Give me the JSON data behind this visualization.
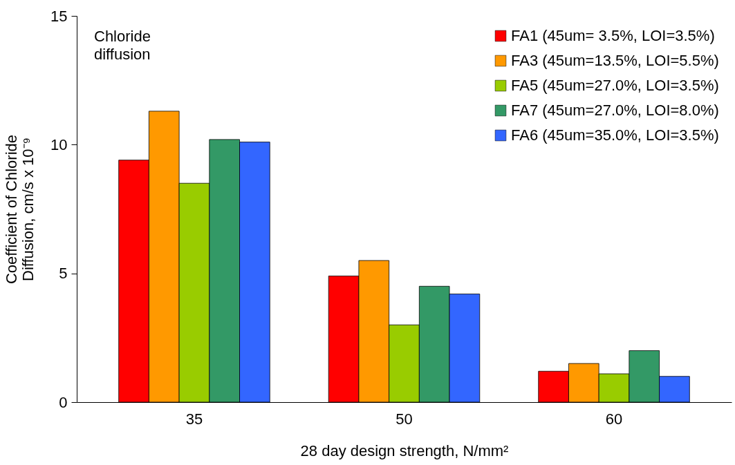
{
  "chart_data": {
    "type": "bar",
    "xlabel": "28 day design strength, N/mm²",
    "ylabel": [
      "Coefficient of Chloride",
      "Diffusion,  cm/s x 10⁻⁹"
    ],
    "categories": [
      "35",
      "50",
      "60"
    ],
    "series": [
      {
        "name": "FA1 (45um=  3.5%, LOI=3.5%)",
        "color": "#ff0000",
        "values": [
          9.4,
          4.9,
          1.2
        ]
      },
      {
        "name": "FA3 (45um=13.5%, LOI=5.5%)",
        "color": "#ff9900",
        "values": [
          11.3,
          5.5,
          1.5
        ]
      },
      {
        "name": "FA5 (45um=27.0%, LOI=3.5%)",
        "color": "#99cc00",
        "values": [
          8.5,
          3.0,
          1.1
        ]
      },
      {
        "name": "FA7 (45um=27.0%, LOI=8.0%)",
        "color": "#339966",
        "values": [
          10.2,
          4.5,
          2.0
        ]
      },
      {
        "name": "FA6 (45um=35.0%, LOI=3.5%)",
        "color": "#3366ff",
        "values": [
          10.1,
          4.2,
          1.0
        ]
      }
    ],
    "ylim": [
      0,
      15
    ],
    "yticks": [
      0,
      5,
      10,
      15
    ],
    "annotations": [
      "Chloride\ndiffusion"
    ],
    "grid": false,
    "legend": "top right"
  }
}
